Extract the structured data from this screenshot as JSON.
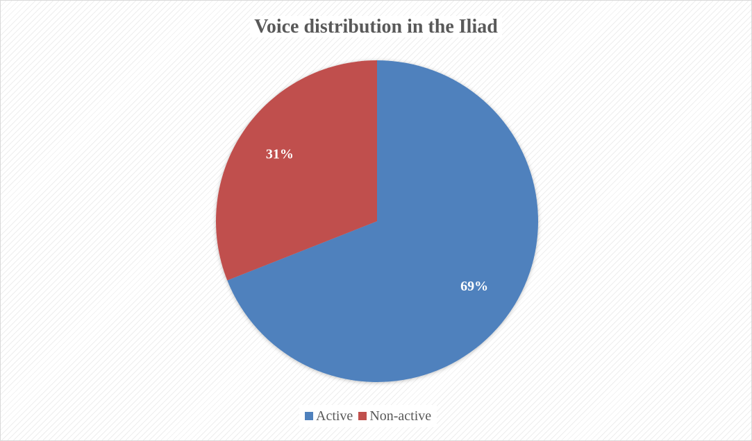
{
  "chart_data": {
    "type": "pie",
    "title": "Voice distribution in the Iliad",
    "categories": [
      "Active",
      "Non-active"
    ],
    "values": [
      69,
      31
    ],
    "labels": [
      "69%",
      "31%"
    ],
    "colors": [
      "#4f81bd",
      "#c0504d"
    ],
    "legend_position": "bottom"
  }
}
